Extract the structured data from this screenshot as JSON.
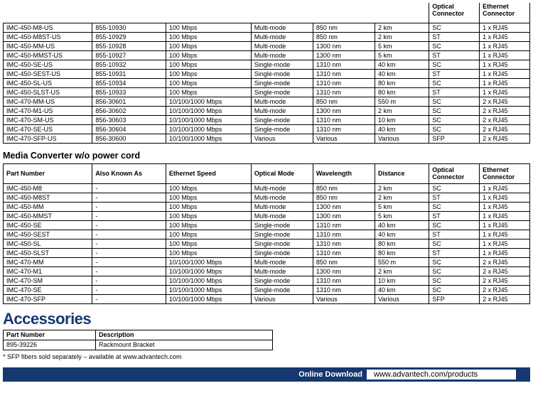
{
  "tableHeaders": {
    "pn": "Part Number",
    "aka": "Also Known As",
    "spd": "Ethernet Speed",
    "opt": "Optical Mode",
    "wav": "Wavelength",
    "dist": "Distance",
    "oc": "Optical Connector",
    "ec": "Ethernet Connector"
  },
  "table1": {
    "rows": [
      [
        "IMC-450-M8-US",
        "855-10930",
        "100 Mbps",
        "Multi-mode",
        "850 nm",
        "2 km",
        "SC",
        "1 x RJ45"
      ],
      [
        "IMC-450-M8ST-US",
        "855-10929",
        "100 Mbps",
        "Multi-mode",
        "850 nm",
        "2 km",
        "ST",
        "1 x RJ45"
      ],
      [
        "IMC-450-MM-US",
        "855-10928",
        "100 Mbps",
        "Multi-mode",
        "1300 nm",
        "5 km",
        "SC",
        "1 x RJ45"
      ],
      [
        "IMC-450-MMST-US",
        "855-10927",
        "100 Mbps",
        "Multi-mode",
        "1300 nm",
        "5 km",
        "ST",
        "1 x RJ45"
      ],
      [
        "IMC-450-SE-US",
        "855-10932",
        "100 Mbps",
        "Single-mode",
        "1310 nm",
        "40 km",
        "SC",
        "1 x RJ45"
      ],
      [
        "IMC-450-SEST-US",
        "855-10931",
        "100 Mbps",
        "Single-mode",
        "1310 nm",
        "40 km",
        "ST",
        "1 x RJ45"
      ],
      [
        "IMC-450-SL-US",
        "855-10934",
        "100 Mbps",
        "Single-mode",
        "1310 nm",
        "80 km",
        "SC",
        "1 x RJ45"
      ],
      [
        "IMC-450-SLST-US",
        "855-10933",
        "100 Mbps",
        "Single-mode",
        "1310 nm",
        "80 km",
        "ST",
        "1 x RJ45"
      ],
      [
        "IMC-470-MM-US",
        "856-30601",
        "10/100/1000 Mbps",
        "Multi-mode",
        "850 nm",
        "550 m",
        "SC",
        "2 x RJ45"
      ],
      [
        "IMC-470-M1-US",
        "856-30602",
        "10/100/1000 Mbps",
        "Multi-mode",
        "1300 nm",
        "2 km",
        "SC",
        "2 x RJ45"
      ],
      [
        "IMC-470-SM-US",
        "856-30603",
        "10/100/1000 Mbps",
        "Single-mode",
        "1310 nm",
        "10 km",
        "SC",
        "2 x RJ45"
      ],
      [
        "IMC-470-SE-US",
        "856-30604",
        "10/100/1000 Mbps",
        "Single-mode",
        "1310 nm",
        "40 km",
        "SC",
        "2 x RJ45"
      ],
      [
        "IMC-470-SFP-US",
        "856-30600",
        "10/100/1000 Mbps",
        "Various",
        "Various",
        "Various",
        "SFP",
        "2 x RJ45"
      ]
    ]
  },
  "section2Title": "Media Converter w/o power cord",
  "table2": {
    "rows": [
      [
        "IMC-450-M8",
        "-",
        "100 Mbps",
        "Multi-mode",
        "850 nm",
        "2 km",
        "SC",
        "1 x RJ45"
      ],
      [
        "IMC-450-M8ST",
        "-",
        "100 Mbps",
        "Multi-mode",
        "850 nm",
        "2 km",
        "ST",
        "1 x RJ45"
      ],
      [
        "IMC-450-MM",
        "-",
        "100 Mbps",
        "Multi-mode",
        "1300 nm",
        "5 km",
        "SC",
        "1 x RJ45"
      ],
      [
        "IMC-450-MMST",
        "-",
        "100 Mbps",
        "Multi-mode",
        "1300 nm",
        "5 km",
        "ST",
        "1 x RJ45"
      ],
      [
        "IMC-450-SE",
        "-",
        "100 Mbps",
        "Single-mode",
        "1310 nm",
        "40 km",
        "SC",
        "1 x RJ45"
      ],
      [
        "IMC-450-SEST",
        "-",
        "100 Mbps",
        "Single-mode",
        "1310 nm",
        "40 km",
        "ST",
        "1 x RJ45"
      ],
      [
        "IMC-450-SL",
        "-",
        "100 Mbps",
        "Single-mode",
        "1310 nm",
        "80 km",
        "SC",
        "1 x RJ45"
      ],
      [
        "IMC-450-SLST",
        "-",
        "100 Mbps",
        "Single-mode",
        "1310 nm",
        "80 km",
        "ST",
        "1 x RJ45"
      ],
      [
        "IMC-470-MM",
        "-",
        "10/100/1000 Mbps",
        "Multi-mode",
        "850 nm",
        "550 m",
        "SC",
        "2 x RJ45"
      ],
      [
        "IMC-470-M1",
        "-",
        "10/100/1000 Mbps",
        "Multi-mode",
        "1300 nm",
        "2 km",
        "SC",
        "2 x RJ45"
      ],
      [
        "IMC-470-SM",
        "-",
        "10/100/1000 Mbps",
        "Single-mode",
        "1310 nm",
        "10 km",
        "SC",
        "2 x RJ45"
      ],
      [
        "IMC-470-SE",
        "-",
        "10/100/1000 Mbps",
        "Single-mode",
        "1310 nm",
        "40 km",
        "SC",
        "2 x RJ45"
      ],
      [
        "IMC-470-SFP",
        "-",
        "10/100/1000 Mbps",
        "Various",
        "Various",
        "Various",
        "SFP",
        "2 x RJ45"
      ]
    ]
  },
  "accessoriesTitle": "Accessories",
  "accHeaders": {
    "pn": "Part Number",
    "desc": "Description"
  },
  "accRows": [
    [
      "895-39226",
      "Rackmount Bracket"
    ]
  ],
  "footnote": "* SFP fibers sold separately – available at www.advantech.com",
  "footer": {
    "label": "Online Download",
    "url": "www.advantech.com/products"
  }
}
